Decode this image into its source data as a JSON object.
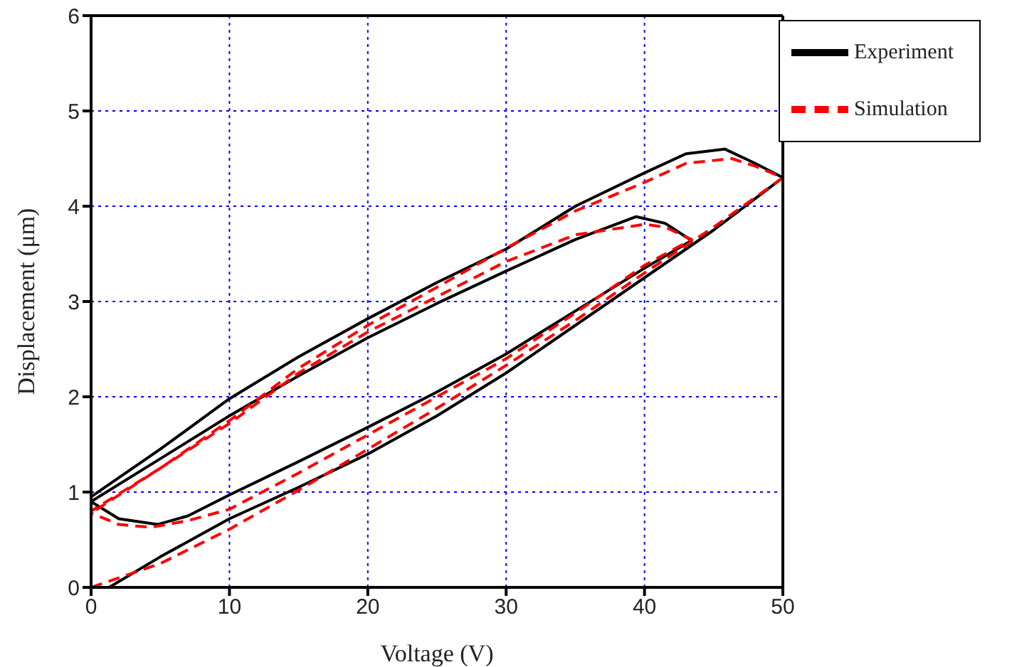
{
  "chart_data": {
    "type": "line",
    "xlabel": "Voltage (V)",
    "ylabel": "Displacement (μm)",
    "xlim": [
      0,
      50
    ],
    "xticks": [
      0,
      10,
      20,
      30,
      40,
      50
    ],
    "ylim": [
      0,
      6
    ],
    "yticks": [
      0,
      1,
      2,
      3,
      4,
      5,
      6
    ],
    "grid": true,
    "legend": "top right",
    "marker": "none",
    "series": [
      {
        "name": "Experiment",
        "color": "#000000",
        "line_style": "solid",
        "x": [
          1.3,
          5,
          10,
          15,
          20,
          25,
          30,
          35,
          40,
          45,
          50,
          48,
          45.8,
          43,
          40,
          35,
          30,
          25,
          20,
          15,
          10,
          5,
          0,
          0,
          2,
          4.8,
          7,
          10,
          15,
          20,
          25,
          30,
          35,
          40,
          43.4,
          41.5,
          39.4,
          35,
          30,
          25,
          20,
          15,
          10,
          5,
          0
        ],
        "values": [
          0,
          0.32,
          0.72,
          1.05,
          1.4,
          1.8,
          2.25,
          2.75,
          3.25,
          3.75,
          4.3,
          4.45,
          4.6,
          4.55,
          4.35,
          4,
          3.55,
          3.2,
          2.82,
          2.42,
          1.98,
          1.45,
          0.95,
          0.9,
          0.72,
          0.66,
          0.75,
          0.97,
          1.32,
          1.68,
          2.05,
          2.45,
          2.9,
          3.35,
          3.64,
          3.82,
          3.89,
          3.65,
          3.32,
          2.98,
          2.62,
          2.22,
          1.8,
          1.35,
          0.9
        ]
      },
      {
        "name": "Simulation",
        "color": "#ff0000",
        "line_style": "dashed",
        "x": [
          0,
          5,
          10,
          15,
          20,
          25,
          30,
          35,
          40,
          45,
          50,
          48,
          46.3,
          43,
          40,
          35,
          30,
          25,
          20,
          15,
          10,
          5,
          0,
          0,
          2,
          4.3,
          7,
          10,
          15,
          20,
          25,
          30,
          35,
          40,
          43.4,
          41.5,
          40,
          35,
          30,
          25,
          20,
          15,
          10,
          5,
          0
        ],
        "values": [
          0,
          0.25,
          0.61,
          1.02,
          1.45,
          1.88,
          2.33,
          2.8,
          3.3,
          3.78,
          4.3,
          4.42,
          4.5,
          4.45,
          4.25,
          3.95,
          3.56,
          3.15,
          2.75,
          2.3,
          1.75,
          1.25,
          0.8,
          0.78,
          0.66,
          0.63,
          0.7,
          0.82,
          1.2,
          1.6,
          2,
          2.4,
          2.88,
          3.38,
          3.65,
          3.78,
          3.81,
          3.7,
          3.42,
          3.05,
          2.68,
          2.25,
          1.72,
          1.25,
          0.78
        ]
      }
    ]
  }
}
